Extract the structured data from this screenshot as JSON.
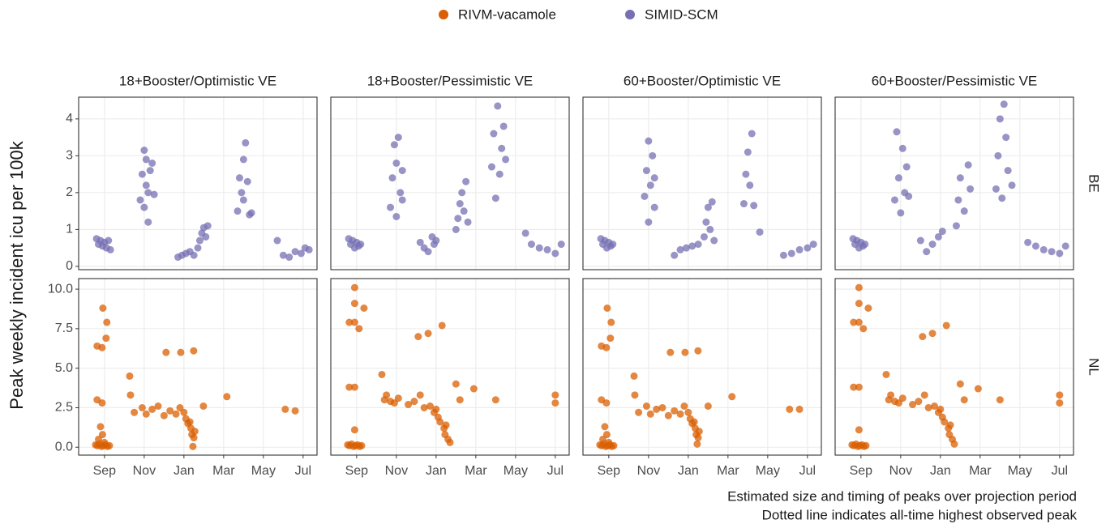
{
  "chart_data": {
    "type": "scatter",
    "grid": true,
    "legend_position": "top",
    "y_label": "Peak weekly incident icu per 100k",
    "caption": [
      "Estimated size and timing of peaks over projection period",
      "Dotted line indicates all-time highest observed peak"
    ],
    "xlim": [
      -1.3,
      10.7
    ],
    "xticks": [
      {
        "value": 0,
        "label": "Sep"
      },
      {
        "value": 2,
        "label": "Nov"
      },
      {
        "value": 4,
        "label": "Jan"
      },
      {
        "value": 6,
        "label": "Mar"
      },
      {
        "value": 8,
        "label": "May"
      },
      {
        "value": 10,
        "label": "Jul"
      }
    ],
    "columns": [
      "18+Booster/Optimistic VE",
      "18+Booster/Pessimistic VE",
      "60+Booster/Optimistic VE",
      "60+Booster/Pessimistic VE"
    ],
    "rows": [
      {
        "label": "BE",
        "ylim": [
          -0.09,
          4.59
        ],
        "yticks": [
          0,
          1,
          2,
          3,
          4
        ]
      },
      {
        "label": "NL",
        "ylim": [
          -0.5,
          10.67
        ],
        "yticks": [
          {
            "value": 0,
            "label": "0.0"
          },
          {
            "value": 2.5,
            "label": "2.5"
          },
          {
            "value": 5,
            "label": "5.0"
          },
          {
            "value": 7.5,
            "label": "7.5"
          },
          {
            "value": 10,
            "label": "10.0"
          }
        ]
      }
    ],
    "panels": [
      {
        "series": [
          {
            "name": "SIMID-SCM",
            "color": "#7570b3",
            "x": [
              -0.4,
              -0.3,
              -0.2,
              -0.1,
              0,
              0.1,
              0.2,
              0.3,
              1.8,
              1.9,
              2.0,
              2.0,
              2.1,
              2.1,
              2.2,
              2.2,
              2.3,
              2.4,
              2.5,
              3.7,
              3.9,
              4.1,
              4.3,
              4.5,
              4.7,
              4.8,
              4.9,
              5.0,
              5.1,
              5.2,
              6.7,
              6.8,
              6.9,
              7.0,
              7.0,
              7.1,
              7.2,
              7.3,
              7.4,
              8.7,
              9.0,
              9.3,
              9.6,
              9.9,
              10.1,
              10.3
            ],
            "values": [
              0.75,
              0.6,
              0.7,
              0.55,
              0.65,
              0.5,
              0.7,
              0.45,
              1.8,
              2.5,
              3.15,
              1.6,
              2.2,
              2.9,
              1.2,
              2.0,
              2.6,
              2.8,
              1.95,
              0.25,
              0.3,
              0.35,
              0.4,
              0.3,
              0.5,
              0.7,
              0.9,
              1.05,
              0.8,
              1.1,
              1.5,
              2.4,
              2.0,
              2.9,
              1.8,
              3.35,
              2.3,
              1.4,
              1.45,
              0.7,
              0.3,
              0.25,
              0.4,
              0.35,
              0.5,
              0.45
            ]
          }
        ]
      },
      {
        "series": [
          {
            "name": "SIMID-SCM",
            "color": "#7570b3",
            "x": [
              -0.4,
              -0.3,
              -0.2,
              -0.1,
              0,
              0.1,
              0.2,
              1.7,
              1.8,
              1.9,
              2.0,
              2.0,
              2.1,
              2.2,
              2.3,
              2.3,
              3.2,
              3.4,
              3.6,
              3.8,
              3.9,
              4.0,
              5.0,
              5.1,
              5.2,
              5.3,
              5.4,
              5.5,
              5.6,
              6.8,
              6.9,
              7.0,
              7.1,
              7.2,
              7.3,
              7.4,
              7.5,
              8.5,
              8.8,
              9.2,
              9.6,
              10.0,
              10.3
            ],
            "values": [
              0.75,
              0.6,
              0.7,
              0.5,
              0.65,
              0.55,
              0.6,
              1.6,
              2.4,
              3.3,
              1.35,
              2.8,
              3.5,
              2.0,
              2.6,
              1.8,
              0.65,
              0.5,
              0.4,
              0.8,
              0.6,
              0.7,
              1.0,
              1.3,
              1.7,
              2.0,
              1.5,
              2.3,
              1.2,
              2.7,
              3.6,
              1.85,
              4.35,
              2.5,
              3.2,
              3.8,
              2.9,
              0.9,
              0.6,
              0.5,
              0.45,
              0.35,
              0.6
            ]
          }
        ]
      },
      {
        "series": [
          {
            "name": "SIMID-SCM",
            "color": "#7570b3",
            "x": [
              -0.4,
              -0.3,
              -0.2,
              -0.1,
              0,
              0.1,
              0.2,
              1.8,
              1.9,
              2.0,
              2.0,
              2.1,
              2.2,
              2.3,
              2.3,
              3.3,
              3.6,
              3.9,
              4.2,
              4.5,
              4.8,
              4.9,
              5.0,
              5.1,
              5.2,
              5.3,
              6.8,
              6.9,
              7.0,
              7.1,
              7.2,
              7.3,
              7.6,
              8.8,
              9.2,
              9.6,
              10.0,
              10.3
            ],
            "values": [
              0.75,
              0.6,
              0.7,
              0.5,
              0.65,
              0.55,
              0.6,
              1.9,
              2.6,
              3.4,
              1.2,
              2.2,
              3.0,
              1.6,
              2.4,
              0.3,
              0.45,
              0.5,
              0.55,
              0.6,
              0.8,
              1.2,
              1.6,
              1.0,
              1.75,
              0.7,
              1.7,
              2.5,
              3.1,
              2.2,
              3.6,
              1.65,
              0.93,
              0.3,
              0.35,
              0.45,
              0.5,
              0.6
            ]
          }
        ]
      },
      {
        "series": [
          {
            "name": "SIMID-SCM",
            "color": "#7570b3",
            "x": [
              -0.4,
              -0.3,
              -0.2,
              -0.1,
              0,
              0.1,
              0.2,
              1.7,
              1.8,
              1.9,
              2.0,
              2.1,
              2.2,
              2.3,
              2.4,
              3.0,
              3.3,
              3.6,
              3.9,
              4.1,
              4.8,
              4.9,
              5.0,
              5.2,
              5.4,
              5.5,
              6.8,
              6.9,
              7.0,
              7.1,
              7.2,
              7.3,
              7.4,
              7.6,
              8.4,
              8.8,
              9.2,
              9.6,
              10.0,
              10.3
            ],
            "values": [
              0.75,
              0.6,
              0.7,
              0.5,
              0.65,
              0.55,
              0.6,
              1.8,
              3.65,
              2.4,
              1.45,
              3.2,
              2.0,
              2.7,
              1.9,
              0.7,
              0.4,
              0.6,
              0.8,
              0.95,
              1.1,
              1.8,
              2.4,
              1.5,
              2.75,
              2.1,
              2.1,
              3.0,
              4.0,
              1.85,
              4.4,
              3.5,
              2.6,
              2.2,
              0.65,
              0.55,
              0.45,
              0.4,
              0.35,
              0.55
            ]
          }
        ]
      },
      {
        "series": [
          {
            "name": "RIVM-vacamole",
            "color": "#d95f02",
            "x": [
              -0.45,
              -0.35,
              -0.25,
              -0.15,
              -0.05,
              0.05,
              0.15,
              0.25,
              -0.3,
              -0.2,
              -0.1,
              0.0,
              -0.37,
              -0.12,
              -0.37,
              -0.12,
              -0.08,
              0.12,
              0.08,
              1.27,
              1.31,
              1.5,
              1.9,
              2.1,
              2.4,
              2.7,
              3.0,
              3.1,
              3.3,
              3.6,
              3.8,
              3.84,
              4.0,
              4.1,
              4.2,
              4.3,
              4.35,
              4.4,
              4.45,
              4.5,
              4.55,
              4.49,
              4.98,
              6.16,
              9.1,
              9.6
            ],
            "values": [
              0.15,
              0.1,
              0.2,
              0.05,
              0.1,
              0.15,
              0.05,
              0.1,
              0.5,
              1.3,
              0.8,
              0.3,
              3.0,
              2.8,
              6.4,
              6.3,
              8.8,
              7.9,
              6.9,
              4.5,
              3.3,
              2.2,
              2.5,
              2.1,
              2.4,
              2.6,
              2.0,
              6.0,
              2.3,
              2.1,
              2.5,
              6.0,
              2.2,
              1.8,
              1.5,
              1.6,
              1.2,
              0.8,
              0.05,
              0.6,
              1.0,
              6.1,
              2.6,
              3.2,
              2.4,
              2.3
            ]
          }
        ]
      },
      {
        "series": [
          {
            "name": "RIVM-vacamole",
            "color": "#d95f02",
            "x": [
              -0.45,
              -0.35,
              -0.25,
              -0.15,
              -0.05,
              0.05,
              0.15,
              0.25,
              -0.1,
              -0.37,
              -0.1,
              -0.1,
              0.12,
              0.37,
              -0.37,
              -0.1,
              -0.1,
              1.27,
              1.4,
              1.5,
              1.7,
              1.9,
              2.1,
              2.6,
              2.9,
              3.1,
              3.2,
              3.4,
              3.6,
              3.7,
              3.9,
              4.0,
              4.1,
              4.2,
              4.3,
              4.4,
              4.45,
              4.5,
              4.6,
              4.7,
              5.0,
              5.2,
              5.9,
              7.0,
              10.0,
              10.0
            ],
            "values": [
              0.15,
              0.1,
              0.2,
              0.05,
              0.1,
              0.15,
              0.05,
              0.1,
              1.1,
              3.8,
              3.8,
              10.1,
              7.5,
              8.8,
              7.9,
              7.9,
              9.1,
              4.6,
              3.0,
              3.3,
              2.9,
              2.8,
              3.1,
              2.7,
              2.9,
              7.0,
              3.3,
              2.5,
              7.2,
              2.6,
              2.2,
              2.4,
              1.9,
              1.6,
              7.7,
              1.2,
              0.8,
              1.4,
              0.5,
              0.3,
              4.0,
              3.0,
              3.7,
              3.0,
              3.3,
              2.8
            ]
          }
        ]
      },
      {
        "series": [
          {
            "name": "RIVM-vacamole",
            "color": "#d95f02",
            "x": [
              -0.45,
              -0.35,
              -0.25,
              -0.15,
              -0.05,
              0.05,
              0.15,
              0.25,
              -0.3,
              -0.2,
              -0.1,
              0.0,
              -0.37,
              -0.12,
              -0.37,
              -0.12,
              -0.08,
              0.12,
              0.08,
              1.27,
              1.31,
              1.5,
              1.9,
              2.1,
              2.4,
              2.7,
              3.0,
              3.1,
              3.3,
              3.6,
              3.8,
              3.84,
              4.0,
              4.1,
              4.2,
              4.3,
              4.35,
              4.4,
              4.45,
              4.5,
              4.55,
              4.49,
              5.0,
              6.2,
              9.1,
              9.6
            ],
            "values": [
              0.15,
              0.1,
              0.2,
              0.05,
              0.1,
              0.15,
              0.05,
              0.1,
              0.5,
              1.3,
              0.8,
              0.3,
              3.0,
              2.8,
              6.4,
              6.3,
              8.8,
              7.9,
              6.9,
              4.5,
              3.3,
              2.2,
              2.6,
              2.1,
              2.4,
              2.5,
              2.0,
              6.0,
              2.3,
              2.1,
              2.6,
              6.0,
              2.2,
              1.8,
              1.5,
              1.6,
              1.2,
              0.8,
              0.2,
              0.6,
              1.0,
              6.1,
              2.6,
              3.2,
              2.4,
              2.4
            ]
          }
        ]
      },
      {
        "series": [
          {
            "name": "RIVM-vacamole",
            "color": "#d95f02",
            "x": [
              -0.45,
              -0.35,
              -0.25,
              -0.15,
              -0.05,
              0.05,
              0.15,
              0.25,
              -0.1,
              -0.37,
              -0.1,
              -0.1,
              0.12,
              0.37,
              -0.37,
              -0.1,
              -0.1,
              1.27,
              1.4,
              1.5,
              1.7,
              1.9,
              2.1,
              2.6,
              2.9,
              3.1,
              3.2,
              3.4,
              3.6,
              3.7,
              3.9,
              4.0,
              4.1,
              4.2,
              4.3,
              4.4,
              4.45,
              4.5,
              4.6,
              4.7,
              5.0,
              5.2,
              5.9,
              7.0,
              10.0,
              10.0
            ],
            "values": [
              0.15,
              0.1,
              0.2,
              0.05,
              0.1,
              0.15,
              0.05,
              0.1,
              1.1,
              3.8,
              3.8,
              10.1,
              7.5,
              8.8,
              7.9,
              7.9,
              9.1,
              4.6,
              3.0,
              3.3,
              2.9,
              2.8,
              3.1,
              2.7,
              2.9,
              7.0,
              3.3,
              2.5,
              7.2,
              2.6,
              2.2,
              2.4,
              1.9,
              1.6,
              7.7,
              1.2,
              0.8,
              1.4,
              0.5,
              0.2,
              4.0,
              3.0,
              3.7,
              3.0,
              3.3,
              2.8
            ]
          }
        ]
      }
    ]
  }
}
